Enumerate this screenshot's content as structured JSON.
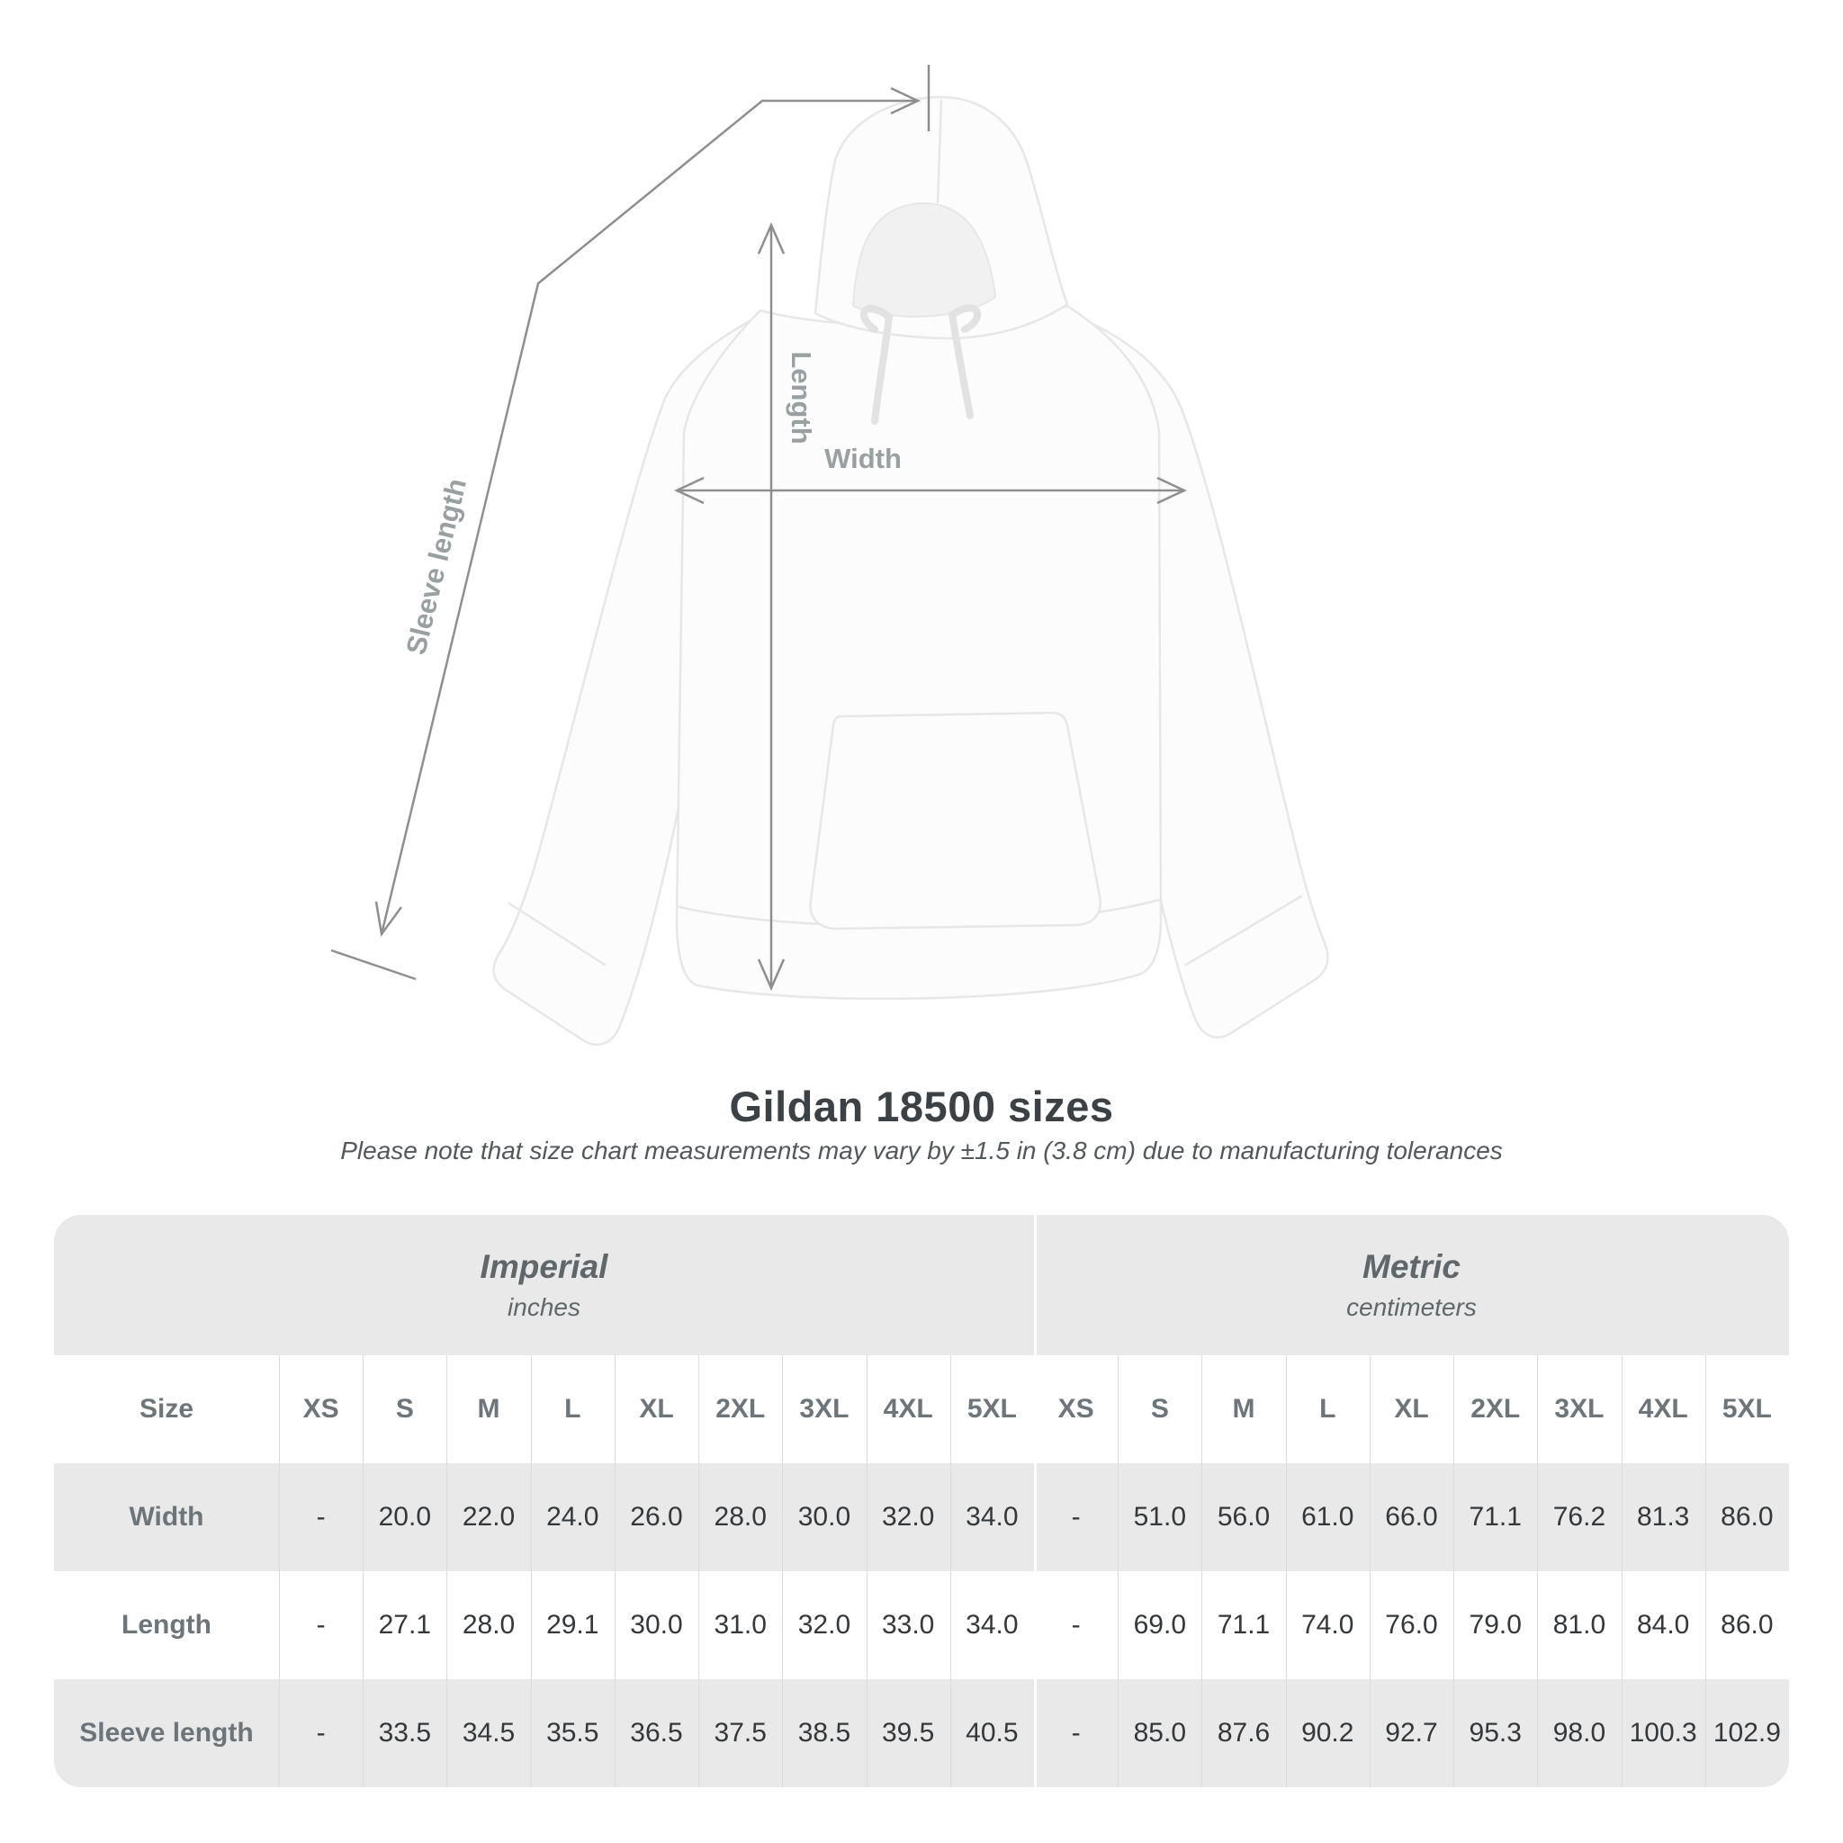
{
  "page": {
    "background": "#ffffff"
  },
  "title": "Gildan 18500 sizes",
  "subtitle": "Please note that size chart measurements may vary by ±1.5 in (3.8 cm) due to manufacturing tolerances",
  "diagram": {
    "labels": {
      "length": "Length",
      "width": "Width",
      "sleeve_length": "Sleeve length"
    },
    "line_color": "#8f8f8f",
    "label_color": "#9aa0a2"
  },
  "chart_data": {
    "type": "table",
    "title": "Gildan 18500 sizes",
    "size_column_header": "Size",
    "sections": [
      {
        "name": "Imperial",
        "unit": "inches"
      },
      {
        "name": "Metric",
        "unit": "centimeters"
      }
    ],
    "sizes": [
      "XS",
      "S",
      "M",
      "L",
      "XL",
      "2XL",
      "3XL",
      "4XL",
      "5XL"
    ],
    "rows": [
      {
        "label": "Width",
        "imperial": [
          "-",
          "20.0",
          "22.0",
          "24.0",
          "26.0",
          "28.0",
          "30.0",
          "32.0",
          "34.0"
        ],
        "metric": [
          "-",
          "51.0",
          "56.0",
          "61.0",
          "66.0",
          "71.1",
          "76.2",
          "81.3",
          "86.0"
        ]
      },
      {
        "label": "Length",
        "imperial": [
          "-",
          "27.1",
          "28.0",
          "29.1",
          "30.0",
          "31.0",
          "32.0",
          "33.0",
          "34.0"
        ],
        "metric": [
          "-",
          "69.0",
          "71.1",
          "74.0",
          "76.0",
          "79.0",
          "81.0",
          "84.0",
          "86.0"
        ]
      },
      {
        "label": "Sleeve length",
        "imperial": [
          "-",
          "33.5",
          "34.5",
          "35.5",
          "36.5",
          "37.5",
          "38.5",
          "39.5",
          "40.5"
        ],
        "metric": [
          "-",
          "85.0",
          "87.6",
          "90.2",
          "92.7",
          "95.3",
          "98.0",
          "100.3",
          "102.9"
        ]
      }
    ],
    "stripe_color": "#e9e9e9",
    "header_text_color": "#6d757a",
    "value_text_color": "#35383a"
  }
}
